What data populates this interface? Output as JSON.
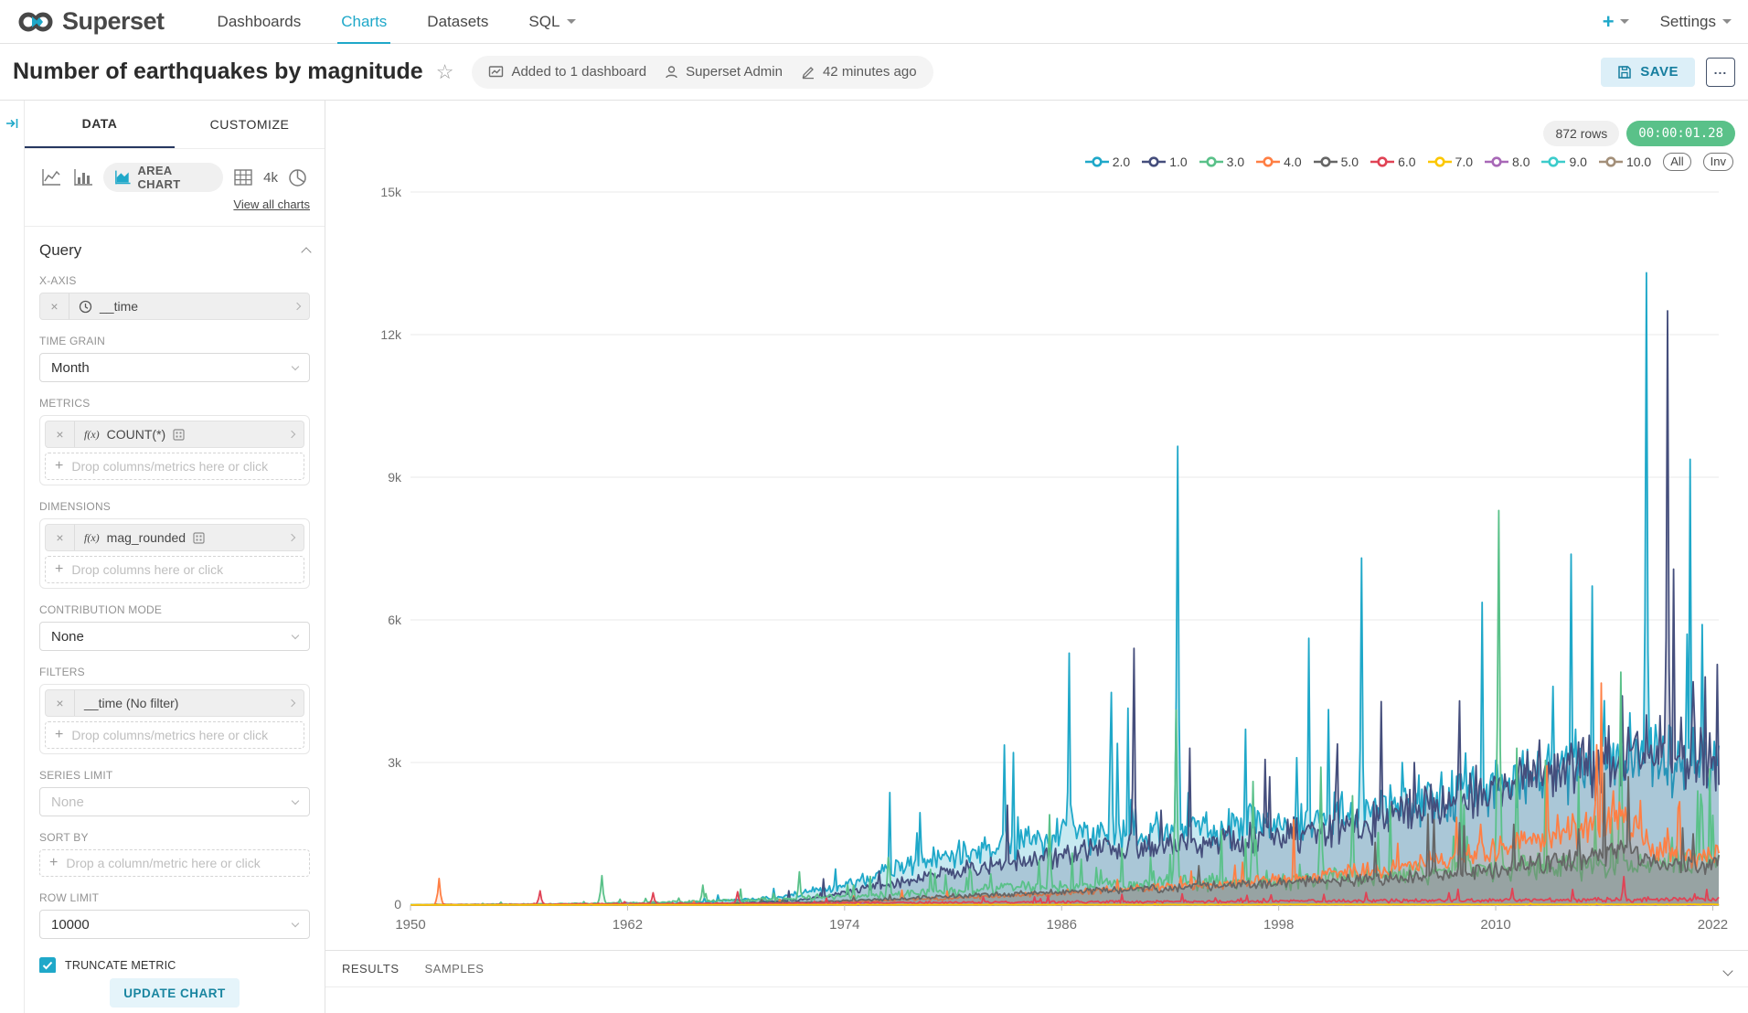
{
  "nav": {
    "brand": "Superset",
    "items": [
      {
        "label": "Dashboards"
      },
      {
        "label": "Charts"
      },
      {
        "label": "Datasets"
      },
      {
        "label": "SQL"
      }
    ],
    "new_button": "+",
    "settings": "Settings"
  },
  "header": {
    "title": "Number of earthquakes by magnitude",
    "added_to": "Added to 1 dashboard",
    "owner": "Superset Admin",
    "modified": "42 minutes ago",
    "save_label": "SAVE",
    "more_label": "..."
  },
  "panel": {
    "tab_data": "DATA",
    "tab_customize": "CUSTOMIZE",
    "viz_selected": "AREA CHART",
    "viz_4k": "4k",
    "view_all": "View all charts",
    "query_title": "Query",
    "xaxis_label": "X-AXIS",
    "xaxis_value": "__time",
    "time_grain_label": "TIME GRAIN",
    "time_grain_value": "Month",
    "metrics_label": "METRICS",
    "metrics_fx": "f(x)",
    "metrics_value": "COUNT(*)",
    "metrics_drop": "Drop columns/metrics here or click",
    "dimensions_label": "DIMENSIONS",
    "dimensions_fx": "f(x)",
    "dimensions_value": "mag_rounded",
    "dimensions_drop": "Drop columns here or click",
    "contribution_label": "CONTRIBUTION MODE",
    "contribution_value": "None",
    "filters_label": "FILTERS",
    "filters_value": "__time (No filter)",
    "filters_drop": "Drop columns/metrics here or click",
    "series_limit_label": "SERIES LIMIT",
    "series_limit_placeholder": "None",
    "sort_by_label": "SORT BY",
    "sort_by_drop": "Drop a column/metric here or click",
    "row_limit_label": "ROW LIMIT",
    "row_limit_value": "10000",
    "truncate_label": "TRUNCATE METRIC",
    "truncate_checked": true,
    "update_button": "UPDATE CHART"
  },
  "chart": {
    "rows_badge": "872 rows",
    "timer": "00:00:01.28",
    "legend": [
      {
        "label": "2.0",
        "color": "#1FA8C9"
      },
      {
        "label": "1.0",
        "color": "#454E7C"
      },
      {
        "label": "3.0",
        "color": "#5AC189"
      },
      {
        "label": "4.0",
        "color": "#FF7F44"
      },
      {
        "label": "5.0",
        "color": "#666666"
      },
      {
        "label": "6.0",
        "color": "#E04355"
      },
      {
        "label": "7.0",
        "color": "#FCC700"
      },
      {
        "label": "8.0",
        "color": "#A868B7"
      },
      {
        "label": "9.0",
        "color": "#3CCCCB"
      },
      {
        "label": "10.0",
        "color": "#A38F79"
      }
    ],
    "legend_all": "All",
    "legend_inv": "Inv"
  },
  "results": {
    "tab_results": "RESULTS",
    "tab_samples": "SAMPLES"
  },
  "colors": {
    "accent": "#1FA8C9",
    "success": "#5AC189",
    "tab_underline": "#263760"
  },
  "chart_data": {
    "type": "area",
    "title": "Number of earthquakes by magnitude",
    "x_label": "__time (Month)",
    "x_range": [
      1950,
      2022.33
    ],
    "x_ticks": [
      1950,
      1962,
      1974,
      1986,
      1998,
      2010,
      2022
    ],
    "y_max": 15000,
    "y_ticks": [
      0,
      3000,
      6000,
      9000,
      12000,
      15000
    ],
    "y_tick_labels": [
      "0",
      "3k",
      "6k",
      "9k",
      "12k",
      "15k"
    ],
    "grid": true,
    "legend_position": "top-right",
    "draw_order": [
      0,
      1,
      2,
      3,
      4,
      5,
      8,
      9,
      7,
      6
    ],
    "series": [
      {
        "name": "2.0",
        "color": "#1FA8C9",
        "fill_opacity": 0.25,
        "noise": 0.32,
        "spike_prob": 0.03,
        "keypoints": [
          [
            1950,
            5
          ],
          [
            1960,
            15
          ],
          [
            1965,
            40
          ],
          [
            1970,
            150
          ],
          [
            1974,
            400
          ],
          [
            1978,
            900
          ],
          [
            1982,
            1200
          ],
          [
            1986,
            1500
          ],
          [
            1990,
            1550
          ],
          [
            1994,
            1600
          ],
          [
            1998,
            1750
          ],
          [
            2002,
            1900
          ],
          [
            2006,
            2200
          ],
          [
            2010,
            2500
          ],
          [
            2014,
            2900
          ],
          [
            2018,
            3300
          ],
          [
            2020,
            3100
          ],
          [
            2022.33,
            2900
          ]
        ],
        "spikes": [
          [
            1986.4,
            5300
          ],
          [
            1989.1,
            3400
          ],
          [
            1992.4,
            9650
          ],
          [
            1996.2,
            3700
          ],
          [
            1999.0,
            3100
          ],
          [
            2002.6,
            7300
          ],
          [
            2004.8,
            3000
          ],
          [
            2008.3,
            3200
          ],
          [
            2013.2,
            4600
          ],
          [
            2016.0,
            4300
          ],
          [
            2018.3,
            13300
          ],
          [
            2020.6,
            5700
          ],
          [
            2021.4,
            5900
          ]
        ]
      },
      {
        "name": "1.0",
        "color": "#454E7C",
        "fill_opacity": 0.22,
        "noise": 0.3,
        "spike_prob": 0.025,
        "keypoints": [
          [
            1950,
            2
          ],
          [
            1962,
            8
          ],
          [
            1968,
            40
          ],
          [
            1972,
            120
          ],
          [
            1976,
            400
          ],
          [
            1980,
            700
          ],
          [
            1984,
            950
          ],
          [
            1988,
            1150
          ],
          [
            1992,
            1250
          ],
          [
            1996,
            1350
          ],
          [
            2000,
            1500
          ],
          [
            2004,
            1800
          ],
          [
            2008,
            2200
          ],
          [
            2012,
            2700
          ],
          [
            2016,
            3000
          ],
          [
            2019,
            3300
          ],
          [
            2022.33,
            3000
          ]
        ],
        "spikes": [
          [
            1983.0,
            2100
          ],
          [
            1990.0,
            5400
          ],
          [
            1993.1,
            3300
          ],
          [
            1997.5,
            2700
          ],
          [
            2001.2,
            2600
          ],
          [
            2005.5,
            3000
          ],
          [
            2009.1,
            2500
          ],
          [
            2011.3,
            3100
          ],
          [
            2014.2,
            3400
          ],
          [
            2017.0,
            4400
          ],
          [
            2019.5,
            12500
          ],
          [
            2020.9,
            4700
          ],
          [
            2021.6,
            4800
          ]
        ]
      },
      {
        "name": "3.0",
        "color": "#5AC189",
        "fill_opacity": 0.1,
        "noise": 0.45,
        "spike_prob": 0.05,
        "keypoints": [
          [
            1950,
            8
          ],
          [
            1958,
            25
          ],
          [
            1964,
            60
          ],
          [
            1970,
            120
          ],
          [
            1976,
            220
          ],
          [
            1982,
            330
          ],
          [
            1988,
            420
          ],
          [
            1994,
            480
          ],
          [
            2000,
            540
          ],
          [
            2006,
            650
          ],
          [
            2012,
            800
          ],
          [
            2018,
            850
          ],
          [
            2022.33,
            900
          ]
        ],
        "spikes": [
          [
            1960.6,
            620
          ],
          [
            1966.2,
            420
          ],
          [
            1971.5,
            700
          ],
          [
            1976.4,
            1000
          ],
          [
            1985.3,
            1900
          ],
          [
            1992.3,
            4100
          ],
          [
            1996.6,
            2600
          ],
          [
            2000.3,
            2900
          ],
          [
            2002.1,
            2300
          ],
          [
            2008.1,
            2400
          ],
          [
            2010.2,
            8300
          ],
          [
            2011.2,
            3300
          ],
          [
            2016.9,
            4900
          ],
          [
            2021.2,
            2400
          ]
        ]
      },
      {
        "name": "4.0",
        "color": "#FF7F44",
        "fill_opacity": 0.12,
        "noise": 0.3,
        "spike_prob": 0.02,
        "keypoints": [
          [
            1950,
            3
          ],
          [
            1962,
            12
          ],
          [
            1970,
            40
          ],
          [
            1976,
            90
          ],
          [
            1982,
            180
          ],
          [
            1988,
            300
          ],
          [
            1994,
            420
          ],
          [
            2000,
            600
          ],
          [
            2004,
            750
          ],
          [
            2008,
            1050
          ],
          [
            2012,
            1350
          ],
          [
            2015,
            1600
          ],
          [
            2017,
            1800
          ],
          [
            2019,
            1200
          ],
          [
            2021,
            950
          ],
          [
            2022.33,
            1100
          ]
        ],
        "spikes": [
          [
            1951.6,
            560
          ],
          [
            1996.0,
            900
          ],
          [
            2004.6,
            1300
          ],
          [
            2009.2,
            1700
          ],
          [
            2013.4,
            1900
          ],
          [
            2016.5,
            2400
          ],
          [
            2018.0,
            2200
          ]
        ]
      },
      {
        "name": "5.0",
        "color": "#666666",
        "fill_opacity": 0.3,
        "noise": 0.3,
        "spike_prob": 0.02,
        "keypoints": [
          [
            1950,
            2
          ],
          [
            1964,
            15
          ],
          [
            1972,
            60
          ],
          [
            1978,
            150
          ],
          [
            1984,
            250
          ],
          [
            1990,
            330
          ],
          [
            1996,
            420
          ],
          [
            2002,
            520
          ],
          [
            2008,
            650
          ],
          [
            2012,
            850
          ],
          [
            2015,
            1000
          ],
          [
            2017,
            1250
          ],
          [
            2019,
            900
          ],
          [
            2022.33,
            820
          ]
        ],
        "spikes": [
          [
            2006.6,
            1800
          ],
          [
            2011.0,
            1700
          ],
          [
            2014.6,
            1600
          ],
          [
            2017.3,
            2700
          ],
          [
            2020.9,
            1500
          ]
        ]
      },
      {
        "name": "6.0",
        "color": "#E04355",
        "fill_opacity": 0.1,
        "noise": 0.5,
        "spike_prob": 0.04,
        "keypoints": [
          [
            1950,
            2
          ],
          [
            1956,
            15
          ],
          [
            1962,
            30
          ],
          [
            1970,
            40
          ],
          [
            1980,
            55
          ],
          [
            1990,
            70
          ],
          [
            2000,
            85
          ],
          [
            2010,
            105
          ],
          [
            2022.33,
            120
          ]
        ],
        "spikes": [
          [
            1957.2,
            300
          ],
          [
            1963.4,
            260
          ],
          [
            1968.1,
            280
          ],
          [
            2007.4,
            260
          ],
          [
            2010.9,
            350
          ],
          [
            2017.1,
            600
          ]
        ]
      },
      {
        "name": "7.0",
        "color": "#FCC700",
        "fill_opacity": 0.15,
        "noise": 0.5,
        "spike_prob": 0.01,
        "keypoints": [
          [
            1950,
            4
          ],
          [
            1980,
            8
          ],
          [
            2000,
            12
          ],
          [
            2022.33,
            15
          ]
        ],
        "spikes": []
      },
      {
        "name": "8.0",
        "color": "#A868B7",
        "fill_opacity": 0.1,
        "noise": 0.8,
        "spike_prob": 0.05,
        "keypoints": [
          [
            1950,
            1
          ],
          [
            1970,
            3
          ],
          [
            1990,
            6
          ],
          [
            2022.33,
            8
          ]
        ],
        "spikes": [
          [
            1962,
            40
          ],
          [
            1975,
            35
          ],
          [
            2006,
            45
          ],
          [
            2015,
            40
          ]
        ]
      },
      {
        "name": "9.0",
        "color": "#3CCCCB",
        "fill_opacity": 0.08,
        "noise": 0.8,
        "spike_prob": 0.02,
        "keypoints": [
          [
            1950,
            0
          ],
          [
            1990,
            2
          ],
          [
            2022.33,
            4
          ]
        ],
        "spikes": []
      },
      {
        "name": "10.0",
        "color": "#A38F79",
        "fill_opacity": 0.08,
        "noise": 0.5,
        "spike_prob": 0.01,
        "keypoints": [
          [
            1950,
            0
          ],
          [
            2022.33,
            2
          ]
        ],
        "spikes": []
      }
    ]
  }
}
